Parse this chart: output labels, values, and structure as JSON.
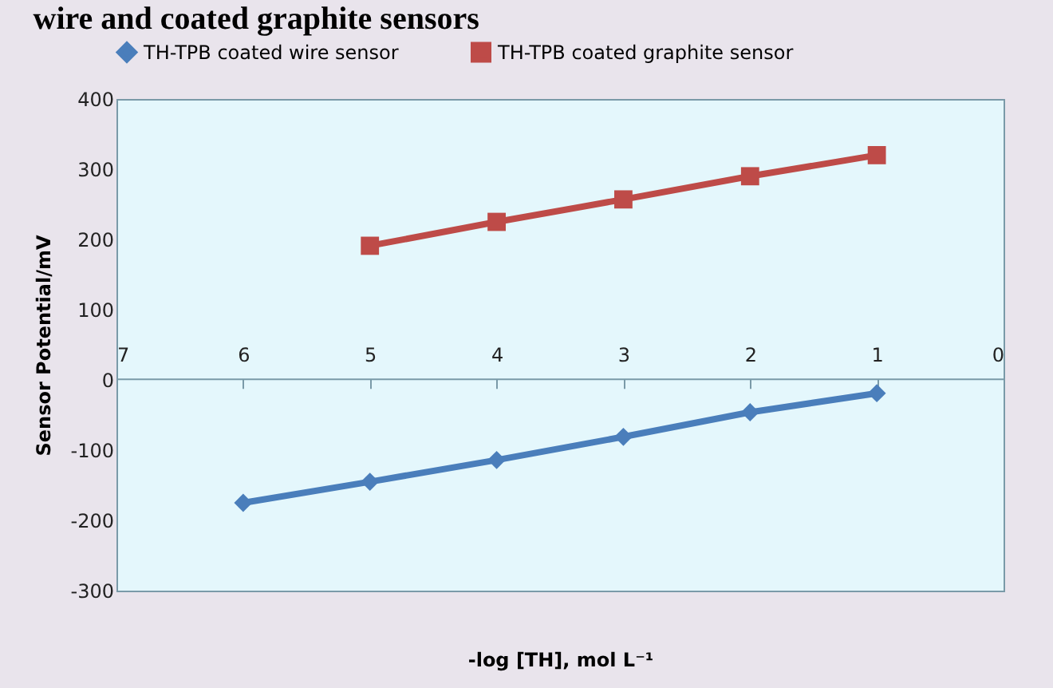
{
  "chart_data": {
    "type": "line",
    "title": "wire and coated graphite sensors",
    "xlabel": "-log [TH], mol L⁻¹",
    "ylabel": "Sensor Potential/mV",
    "x": [
      6,
      5,
      4,
      3,
      2,
      1
    ],
    "series": [
      {
        "name": "TH-TPB coated wire sensor",
        "color": "#4a7ebb",
        "marker": "diamond",
        "values": [
          -175,
          -145,
          -114,
          -81,
          -46,
          -19
        ]
      },
      {
        "name": "TH-TPB coated graphite sensor",
        "color": "#be4b48",
        "marker": "square",
        "x": [
          5,
          4,
          3,
          2,
          1
        ],
        "values": [
          191,
          225,
          257,
          290,
          320
        ]
      }
    ],
    "xlim": [
      7,
      0
    ],
    "xticks": [
      7,
      6,
      5,
      4,
      3,
      2,
      1,
      0
    ],
    "ylim": [
      -300,
      400
    ],
    "yticks": [
      -300,
      -200,
      -100,
      0,
      100,
      200,
      300,
      400
    ],
    "grid": false,
    "legend": "top",
    "line_style": "solid"
  }
}
